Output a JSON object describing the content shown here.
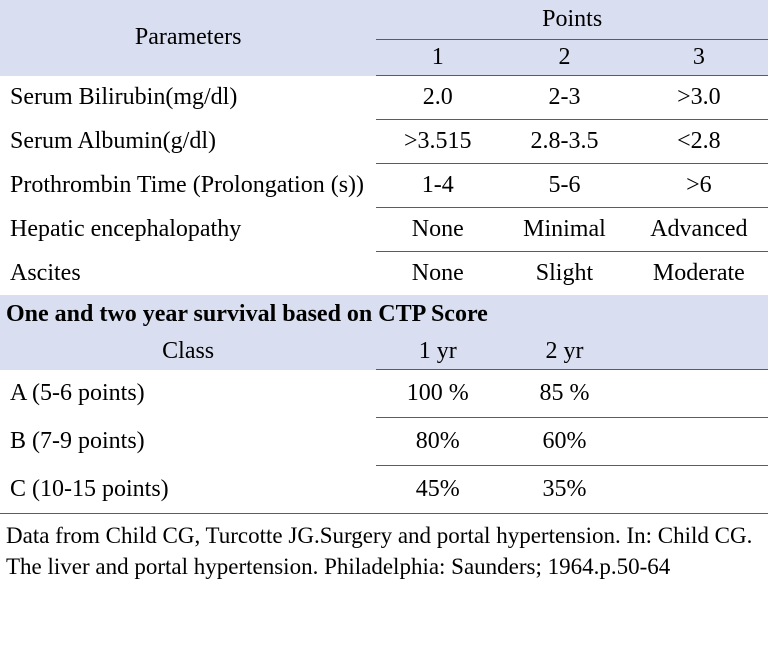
{
  "colors": {
    "header_bg": "#d9dff0",
    "rule": "#3a5bb8",
    "text": "#000000",
    "background": "#ffffff"
  },
  "typography": {
    "body_font": "Times New Roman",
    "body_size_pt": 18,
    "title_bold": true
  },
  "top": {
    "parameters_label": "Parameters",
    "points_label": "Points",
    "point_cols": [
      "1",
      "2",
      "3"
    ],
    "rows": [
      {
        "name": "Serum Bilirubin(mg/dl)",
        "vals": [
          "2.0",
          "2-3",
          ">3.0"
        ]
      },
      {
        "name": "Serum Albumin(g/dl)",
        "vals": [
          ">3.515",
          "2.8-3.5",
          "<2.8"
        ]
      },
      {
        "name": "Prothrombin Time  (Prolongation (s))",
        "vals": [
          "1-4",
          "5-6",
          ">6"
        ]
      },
      {
        "name": "Hepatic encephalopathy",
        "vals": [
          "None",
          "Minimal",
          "Advanced"
        ]
      },
      {
        "name": "Ascites",
        "vals": [
          "None",
          "Slight",
          "Moderate"
        ]
      }
    ]
  },
  "survival": {
    "title": "One and two year survival based on CTP Score",
    "class_label": "Class",
    "year_cols": [
      "1 yr",
      "2 yr"
    ],
    "rows": [
      {
        "name": "A (5-6 points)",
        "vals": [
          "100 %",
          "85 %"
        ]
      },
      {
        "name": "B (7-9 points)",
        "vals": [
          "80%",
          "60%"
        ]
      },
      {
        "name": "C (10-15 points)",
        "vals": [
          "45%",
          "35%"
        ]
      }
    ]
  },
  "footnote": "Data from Child CG, Turcotte JG.Surgery and portal hypertension. In: Child CG. The liver and portal hypertension. Philadelphia: Saunders; 1964.p.50-64"
}
